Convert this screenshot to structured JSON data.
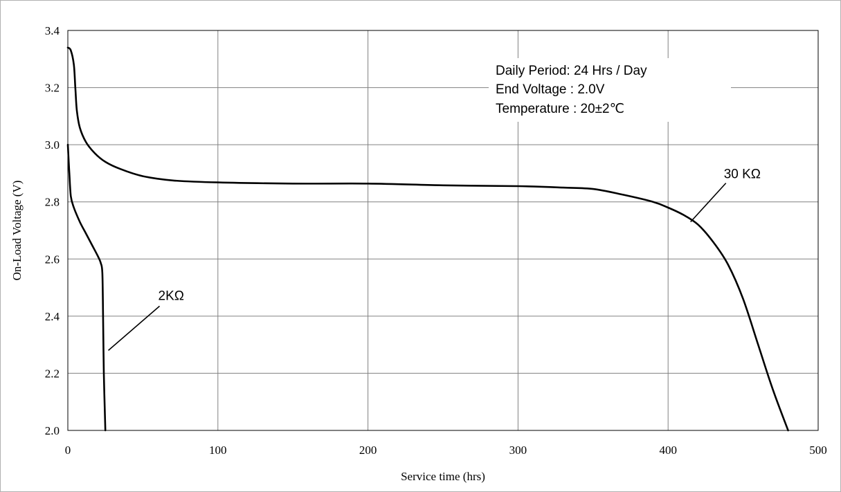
{
  "chart_data": {
    "type": "line",
    "title": "",
    "xlabel": "Service time (hrs)",
    "ylabel": "On-Load Voltage (V)",
    "xlim": [
      0,
      500
    ],
    "ylim": [
      2.0,
      3.4
    ],
    "x_ticks": [
      "0",
      "100",
      "200",
      "300",
      "400",
      "500"
    ],
    "y_ticks": [
      "2.0",
      "2.2",
      "2.4",
      "2.6",
      "2.8",
      "3.0",
      "3.2",
      "3.4"
    ],
    "grid": true,
    "annotation_lines": [
      "Daily Period: 24 Hrs / Day",
      "End Voltage : 2.0V",
      "Temperature : 20±2℃"
    ],
    "series": [
      {
        "name": "30 KΩ",
        "points": [
          [
            0,
            3.34
          ],
          [
            2,
            3.33
          ],
          [
            4,
            3.28
          ],
          [
            5,
            3.2
          ],
          [
            6,
            3.12
          ],
          [
            8,
            3.06
          ],
          [
            12,
            3.01
          ],
          [
            18,
            2.97
          ],
          [
            25,
            2.94
          ],
          [
            35,
            2.915
          ],
          [
            50,
            2.89
          ],
          [
            70,
            2.875
          ],
          [
            100,
            2.868
          ],
          [
            150,
            2.864
          ],
          [
            200,
            2.864
          ],
          [
            250,
            2.858
          ],
          [
            300,
            2.855
          ],
          [
            330,
            2.85
          ],
          [
            350,
            2.845
          ],
          [
            370,
            2.825
          ],
          [
            390,
            2.8
          ],
          [
            400,
            2.78
          ],
          [
            410,
            2.755
          ],
          [
            420,
            2.72
          ],
          [
            430,
            2.66
          ],
          [
            440,
            2.58
          ],
          [
            450,
            2.46
          ],
          [
            460,
            2.3
          ],
          [
            470,
            2.14
          ],
          [
            480,
            2.0
          ]
        ]
      },
      {
        "name": "2KΩ",
        "points": [
          [
            0,
            3.0
          ],
          [
            1,
            2.9
          ],
          [
            2,
            2.82
          ],
          [
            4,
            2.78
          ],
          [
            8,
            2.73
          ],
          [
            12,
            2.69
          ],
          [
            16,
            2.65
          ],
          [
            20,
            2.61
          ],
          [
            22,
            2.585
          ],
          [
            23,
            2.55
          ],
          [
            23.5,
            2.4
          ],
          [
            24,
            2.2
          ],
          [
            25,
            2.0
          ]
        ]
      }
    ],
    "curve_labels": [
      {
        "series": "30 KΩ",
        "text": "30 KΩ",
        "at": [
          415,
          2.73
        ]
      },
      {
        "series": "2KΩ",
        "text": "2KΩ",
        "at": [
          27,
          2.28
        ]
      }
    ]
  }
}
